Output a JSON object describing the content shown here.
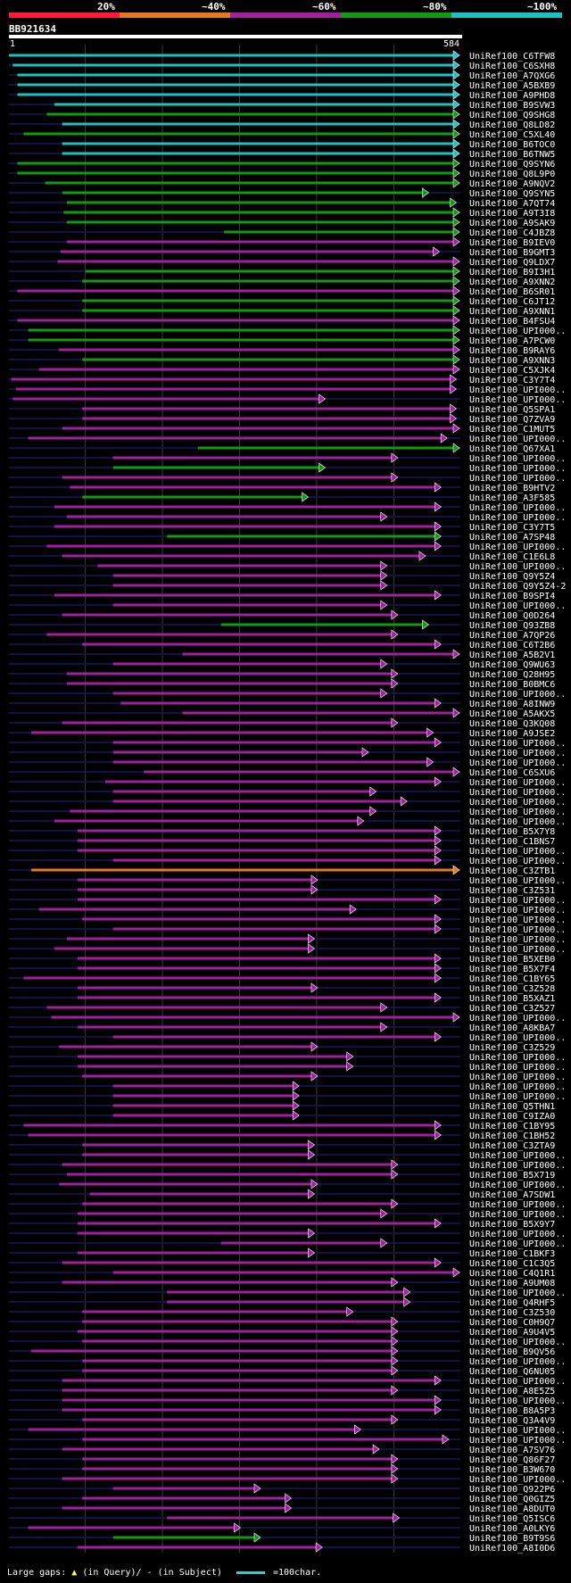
{
  "legend": {
    "labels": [
      "20%",
      "~40%",
      "~60%",
      "~80%",
      "~100%"
    ],
    "colors": [
      "#ff1a3a",
      "#e87722",
      "#a020a0",
      "#139a13",
      "#1fc0c0"
    ]
  },
  "query": {
    "id": "BB921634",
    "start": "1",
    "end": "584"
  },
  "footer": {
    "gaps_label": "Large gaps:",
    "query_gap": "(in Query)/",
    "subject_gap": "- (in Subject)",
    "scale_label": "=100char."
  },
  "chart_data": {
    "type": "alignment",
    "query_id": "BB921634",
    "query_length": 584,
    "hits": [
      {
        "id": "UniRef100_C6TFW8",
        "identity": "~100%",
        "start": 1,
        "end": 584
      },
      {
        "id": "UniRef100_C6SXH8",
        "identity": "~100%",
        "start": 6,
        "end": 584
      },
      {
        "id": "UniRef100_A7QXG6",
        "identity": "~100%",
        "start": 12,
        "end": 584
      },
      {
        "id": "UniRef100_A5BXB9",
        "identity": "~100%",
        "start": 12,
        "end": 584
      },
      {
        "id": "UniRef100_A9PHD8",
        "identity": "~100%",
        "start": 12,
        "end": 584
      },
      {
        "id": "UniRef100_B9SVW3",
        "identity": "~100%",
        "start": 60,
        "end": 584
      },
      {
        "id": "UniRef100_Q9SHG8",
        "identity": "~80%",
        "start": 50,
        "end": 584
      },
      {
        "id": "UniRef100_Q8LD82",
        "identity": "~100%",
        "start": 70,
        "end": 584
      },
      {
        "id": "UniRef100_C5XL40",
        "identity": "~80%",
        "start": 20,
        "end": 584
      },
      {
        "id": "UniRef100_B6TOC0",
        "identity": "~100%",
        "start": 70,
        "end": 584
      },
      {
        "id": "UniRef100_B6TNW5",
        "identity": "~100%",
        "start": 70,
        "end": 584
      },
      {
        "id": "UniRef100_Q9SYN6",
        "identity": "~80%",
        "start": 12,
        "end": 584
      },
      {
        "id": "UniRef100_Q8L9P0",
        "identity": "~80%",
        "start": 12,
        "end": 584
      },
      {
        "id": "UniRef100_A9NQV2",
        "identity": "~80%",
        "start": 48,
        "end": 584
      },
      {
        "id": "UniRef100_Q9SYN5",
        "identity": "~80%",
        "start": 70,
        "end": 544
      },
      {
        "id": "UniRef100_A7QT74",
        "identity": "~80%",
        "start": 76,
        "end": 580
      },
      {
        "id": "UniRef100_A9T3I8",
        "identity": "~80%",
        "start": 72,
        "end": 584
      },
      {
        "id": "UniRef100_A9SAK9",
        "identity": "~80%",
        "start": 76,
        "end": 584
      },
      {
        "id": "UniRef100_C4JBZ8",
        "identity": "~80%",
        "start": 280,
        "end": 584
      },
      {
        "id": "UniRef100_B9IEV0",
        "identity": "~60%",
        "start": 76,
        "end": 584
      },
      {
        "id": "UniRef100_B9GMT3",
        "identity": "~60%",
        "start": 68,
        "end": 558
      },
      {
        "id": "UniRef100_Q9LDX7",
        "identity": "~60%",
        "start": 64,
        "end": 584
      },
      {
        "id": "UniRef100_B9I3H1",
        "identity": "~80%",
        "start": 100,
        "end": 584
      },
      {
        "id": "UniRef100_A9XNN2",
        "identity": "~80%",
        "start": 96,
        "end": 584
      },
      {
        "id": "UniRef100_B6SR01",
        "identity": "~60%",
        "start": 12,
        "end": 584
      },
      {
        "id": "UniRef100_C6JT12",
        "identity": "~80%",
        "start": 96,
        "end": 584
      },
      {
        "id": "UniRef100_A9XNN1",
        "identity": "~80%",
        "start": 96,
        "end": 584
      },
      {
        "id": "UniRef100_B4FSU4",
        "identity": "~60%",
        "start": 12,
        "end": 584
      },
      {
        "id": "UniRef100_UPI000..",
        "identity": "~80%",
        "start": 26,
        "end": 584
      },
      {
        "id": "UniRef100_A7PCW0",
        "identity": "~80%",
        "start": 26,
        "end": 584
      },
      {
        "id": "UniRef100_B9RAY6",
        "identity": "~60%",
        "start": 66,
        "end": 584
      },
      {
        "id": "UniRef100_A9XNN3",
        "identity": "~80%",
        "start": 96,
        "end": 584
      },
      {
        "id": "UniRef100_C5XJK4",
        "identity": "~60%",
        "start": 40,
        "end": 584
      },
      {
        "id": "UniRef100_C3Y7T4",
        "identity": "~60%",
        "start": 4,
        "end": 580
      },
      {
        "id": "UniRef100_UPI000..",
        "identity": "~60%",
        "start": 10,
        "end": 580
      },
      {
        "id": "UniRef100_UPI000..",
        "identity": "~60%",
        "start": 6,
        "end": 410
      },
      {
        "id": "UniRef100_Q5SPA1",
        "identity": "~60%",
        "start": 96,
        "end": 580
      },
      {
        "id": "UniRef100_Q7ZVA9",
        "identity": "~60%",
        "start": 96,
        "end": 580
      },
      {
        "id": "UniRef100_C1MUT5",
        "identity": "~60%",
        "start": 70,
        "end": 584
      },
      {
        "id": "UniRef100_UPI000..",
        "identity": "~60%",
        "start": 26,
        "end": 568
      },
      {
        "id": "UniRef100_Q67XA1",
        "identity": "~80%",
        "start": 246,
        "end": 584
      },
      {
        "id": "UniRef100_UPI000..",
        "identity": "~60%",
        "start": 136,
        "end": 504
      },
      {
        "id": "UniRef100_UPI000..",
        "identity": "~80%",
        "start": 136,
        "end": 410
      },
      {
        "id": "UniRef100_UPI000..",
        "identity": "~60%",
        "start": 70,
        "end": 504
      },
      {
        "id": "UniRef100_B9HTV2",
        "identity": "~60%",
        "start": 80,
        "end": 560
      },
      {
        "id": "UniRef100_A3F585",
        "identity": "~80%",
        "start": 96,
        "end": 388
      },
      {
        "id": "UniRef100_UPI000..",
        "identity": "~60%",
        "start": 60,
        "end": 560
      },
      {
        "id": "UniRef100_UPI000..",
        "identity": "~60%",
        "start": 76,
        "end": 490
      },
      {
        "id": "UniRef100_C3Y7T5",
        "identity": "~60%",
        "start": 60,
        "end": 560
      },
      {
        "id": "UniRef100_A7SP48",
        "identity": "~80%",
        "start": 206,
        "end": 560
      },
      {
        "id": "UniRef100_UPI000..",
        "identity": "~60%",
        "start": 50,
        "end": 560
      },
      {
        "id": "UniRef100_C1E6L8",
        "identity": "~60%",
        "start": 70,
        "end": 540
      },
      {
        "id": "UniRef100_UPI000..",
        "identity": "~60%",
        "start": 116,
        "end": 490
      },
      {
        "id": "UniRef100_Q9Y5Z4",
        "identity": "~60%",
        "start": 136,
        "end": 490
      },
      {
        "id": "UniRef100_Q9Y5Z4-2",
        "identity": "~60%",
        "start": 136,
        "end": 490
      },
      {
        "id": "UniRef100_B9SPI4",
        "identity": "~60%",
        "start": 60,
        "end": 560
      },
      {
        "id": "UniRef100_UPI000..",
        "identity": "~60%",
        "start": 136,
        "end": 490
      },
      {
        "id": "UniRef100_Q0D264",
        "identity": "~60%",
        "start": 70,
        "end": 504
      },
      {
        "id": "UniRef100_Q93ZB8",
        "identity": "~80%",
        "start": 276,
        "end": 544
      },
      {
        "id": "UniRef100_A7QP26",
        "identity": "~60%",
        "start": 50,
        "end": 504
      },
      {
        "id": "UniRef100_C6T2B6",
        "identity": "~60%",
        "start": 96,
        "end": 560
      },
      {
        "id": "UniRef100_A5B2V1",
        "identity": "~60%",
        "start": 226,
        "end": 584
      },
      {
        "id": "UniRef100_Q9WU63",
        "identity": "~60%",
        "start": 136,
        "end": 490
      },
      {
        "id": "UniRef100_Q28H95",
        "identity": "~60%",
        "start": 76,
        "end": 504
      },
      {
        "id": "UniRef100_B0BMC6",
        "identity": "~60%",
        "start": 76,
        "end": 504
      },
      {
        "id": "UniRef100_UPI000..",
        "identity": "~60%",
        "start": 136,
        "end": 490
      },
      {
        "id": "UniRef100_A8INW9",
        "identity": "~60%",
        "start": 146,
        "end": 560
      },
      {
        "id": "UniRef100_A5AKX5",
        "identity": "~60%",
        "start": 226,
        "end": 584
      },
      {
        "id": "UniRef100_Q3KQ08",
        "identity": "~60%",
        "start": 70,
        "end": 504
      },
      {
        "id": "UniRef100_A9JSE2",
        "identity": "~60%",
        "start": 30,
        "end": 550
      },
      {
        "id": "UniRef100_UPI000..",
        "identity": "~60%",
        "start": 136,
        "end": 560
      },
      {
        "id": "UniRef100_UPI000..",
        "identity": "~60%",
        "start": 136,
        "end": 466
      },
      {
        "id": "UniRef100_UPI000..",
        "identity": "~60%",
        "start": 136,
        "end": 550
      },
      {
        "id": "UniRef100_C6SXU6",
        "identity": "~60%",
        "start": 176,
        "end": 584
      },
      {
        "id": "UniRef100_UPI000..",
        "identity": "~60%",
        "start": 126,
        "end": 560
      },
      {
        "id": "UniRef100_UPI000..",
        "identity": "~60%",
        "start": 136,
        "end": 476
      },
      {
        "id": "UniRef100_UPI000..",
        "identity": "~60%",
        "start": 136,
        "end": 516
      },
      {
        "id": "UniRef100_UPI000..",
        "identity": "~60%",
        "start": 80,
        "end": 476
      },
      {
        "id": "UniRef100_UPI000..",
        "identity": "~60%",
        "start": 60,
        "end": 460
      },
      {
        "id": "UniRef100_B5X7Y8",
        "identity": "~60%",
        "start": 90,
        "end": 560
      },
      {
        "id": "UniRef100_C1BNS7",
        "identity": "~60%",
        "start": 90,
        "end": 560
      },
      {
        "id": "UniRef100_UPI000..",
        "identity": "~60%",
        "start": 90,
        "end": 560
      },
      {
        "id": "UniRef100_UPI000..",
        "identity": "~60%",
        "start": 136,
        "end": 560
      },
      {
        "id": "UniRef100_C3ZTB1",
        "identity": "~40%",
        "start": 30,
        "end": 584
      },
      {
        "id": "UniRef100_UPI000..",
        "identity": "~60%",
        "start": 90,
        "end": 400
      },
      {
        "id": "UniRef100_C3Z531",
        "identity": "~60%",
        "start": 90,
        "end": 400
      },
      {
        "id": "UniRef100_UPI000..",
        "identity": "~60%",
        "start": 90,
        "end": 560
      },
      {
        "id": "UniRef100_UPI000..",
        "identity": "~60%",
        "start": 40,
        "end": 450
      },
      {
        "id": "UniRef100_UPI000..",
        "identity": "~60%",
        "start": 96,
        "end": 560
      },
      {
        "id": "UniRef100_UPI000..",
        "identity": "~60%",
        "start": 136,
        "end": 560
      },
      {
        "id": "UniRef100_UPI000..",
        "identity": "~60%",
        "start": 76,
        "end": 396
      },
      {
        "id": "UniRef100_UPI000..",
        "identity": "~60%",
        "start": 60,
        "end": 396
      },
      {
        "id": "UniRef100_B5XEB0",
        "identity": "~60%",
        "start": 90,
        "end": 560
      },
      {
        "id": "UniRef100_B5X7F4",
        "identity": "~60%",
        "start": 90,
        "end": 560
      },
      {
        "id": "UniRef100_C1BY65",
        "identity": "~60%",
        "start": 20,
        "end": 560
      },
      {
        "id": "UniRef100_C3Z528",
        "identity": "~60%",
        "start": 90,
        "end": 400
      },
      {
        "id": "UniRef100_B5XAZ1",
        "identity": "~60%",
        "start": 90,
        "end": 560
      },
      {
        "id": "UniRef100_C3Z527",
        "identity": "~60%",
        "start": 50,
        "end": 490
      },
      {
        "id": "UniRef100_UPI000..",
        "identity": "~60%",
        "start": 56,
        "end": 584
      },
      {
        "id": "UniRef100_A8KBA7",
        "identity": "~60%",
        "start": 90,
        "end": 490
      },
      {
        "id": "UniRef100_UPI000..",
        "identity": "~60%",
        "start": 136,
        "end": 560
      },
      {
        "id": "UniRef100_C3Z529",
        "identity": "~60%",
        "start": 66,
        "end": 400
      },
      {
        "id": "UniRef100_UPI000..",
        "identity": "~60%",
        "start": 90,
        "end": 446
      },
      {
        "id": "UniRef100_UPI000..",
        "identity": "~60%",
        "start": 90,
        "end": 446
      },
      {
        "id": "UniRef100_UPI000..",
        "identity": "~60%",
        "start": 96,
        "end": 400
      },
      {
        "id": "UniRef100_UPI000..",
        "identity": "~60%",
        "start": 136,
        "end": 376
      },
      {
        "id": "UniRef100_UPI000..",
        "identity": "~60%",
        "start": 136,
        "end": 376
      },
      {
        "id": "UniRef100_Q5THN1",
        "identity": "~60%",
        "start": 136,
        "end": 376
      },
      {
        "id": "UniRef100_C9IZA0",
        "identity": "~60%",
        "start": 136,
        "end": 376
      },
      {
        "id": "UniRef100_C1BY95",
        "identity": "~60%",
        "start": 20,
        "end": 560
      },
      {
        "id": "UniRef100_C1BH52",
        "identity": "~60%",
        "start": 26,
        "end": 560
      },
      {
        "id": "UniRef100_C3ZTA9",
        "identity": "~60%",
        "start": 96,
        "end": 396
      },
      {
        "id": "UniRef100_UPI000..",
        "identity": "~60%",
        "start": 96,
        "end": 396
      },
      {
        "id": "UniRef100_UPI000..",
        "identity": "~60%",
        "start": 70,
        "end": 504
      },
      {
        "id": "UniRef100_B5X719",
        "identity": "~60%",
        "start": 76,
        "end": 504
      },
      {
        "id": "UniRef100_UPI000..",
        "identity": "~60%",
        "start": 66,
        "end": 400
      },
      {
        "id": "UniRef100_A7SDW1",
        "identity": "~60%",
        "start": 106,
        "end": 396
      },
      {
        "id": "UniRef100_UPI000..",
        "identity": "~60%",
        "start": 96,
        "end": 504
      },
      {
        "id": "UniRef100_UPI000..",
        "identity": "~60%",
        "start": 90,
        "end": 490
      },
      {
        "id": "UniRef100_B5X9Y7",
        "identity": "~60%",
        "start": 90,
        "end": 560
      },
      {
        "id": "UniRef100_UPI000..",
        "identity": "~60%",
        "start": 90,
        "end": 396
      },
      {
        "id": "UniRef100_UPI000..",
        "identity": "~60%",
        "start": 276,
        "end": 490
      },
      {
        "id": "UniRef100_C1BKF3",
        "identity": "~60%",
        "start": 90,
        "end": 396
      },
      {
        "id": "UniRef100_C1C3Q5",
        "identity": "~60%",
        "start": 70,
        "end": 560
      },
      {
        "id": "UniRef100_C4Q1R1",
        "identity": "~60%",
        "start": 136,
        "end": 584
      },
      {
        "id": "UniRef100_A9UM08",
        "identity": "~60%",
        "start": 70,
        "end": 504
      },
      {
        "id": "UniRef100_UPI000..",
        "identity": "~60%",
        "start": 206,
        "end": 520
      },
      {
        "id": "UniRef100_Q4RHF5",
        "identity": "~60%",
        "start": 206,
        "end": 520
      },
      {
        "id": "UniRef100_C3Z530",
        "identity": "~60%",
        "start": 96,
        "end": 446
      },
      {
        "id": "UniRef100_C0H9Q7",
        "identity": "~60%",
        "start": 96,
        "end": 504
      },
      {
        "id": "UniRef100_A9U4V5",
        "identity": "~60%",
        "start": 90,
        "end": 504
      },
      {
        "id": "UniRef100_UPI000..",
        "identity": "~60%",
        "start": 96,
        "end": 504
      },
      {
        "id": "UniRef100_B9QV56",
        "identity": "~60%",
        "start": 30,
        "end": 504
      },
      {
        "id": "UniRef100_UPI000..",
        "identity": "~60%",
        "start": 96,
        "end": 504
      },
      {
        "id": "UniRef100_Q6NU05",
        "identity": "~60%",
        "start": 96,
        "end": 504
      },
      {
        "id": "UniRef100_UPI000..",
        "identity": "~60%",
        "start": 70,
        "end": 560
      },
      {
        "id": "UniRef100_A8E5Z5",
        "identity": "~60%",
        "start": 70,
        "end": 504
      },
      {
        "id": "UniRef100_UPI000..",
        "identity": "~60%",
        "start": 70,
        "end": 560
      },
      {
        "id": "UniRef100_B8A5P3",
        "identity": "~60%",
        "start": 70,
        "end": 560
      },
      {
        "id": "UniRef100_Q3A4V9",
        "identity": "~60%",
        "start": 96,
        "end": 504
      },
      {
        "id": "UniRef100_UPI000..",
        "identity": "~60%",
        "start": 26,
        "end": 456
      },
      {
        "id": "UniRef100_UPI000..",
        "identity": "~60%",
        "start": 96,
        "end": 570
      },
      {
        "id": "UniRef100_A7SV76",
        "identity": "~60%",
        "start": 70,
        "end": 480
      },
      {
        "id": "UniRef100_Q86F27",
        "identity": "~60%",
        "start": 96,
        "end": 504
      },
      {
        "id": "UniRef100_B3W670",
        "identity": "~60%",
        "start": 96,
        "end": 504
      },
      {
        "id": "UniRef100_UPI000..",
        "identity": "~60%",
        "start": 70,
        "end": 504
      },
      {
        "id": "UniRef100_Q922P6",
        "identity": "~60%",
        "start": 136,
        "end": 326
      },
      {
        "id": "UniRef100_Q0GIZ5",
        "identity": "~60%",
        "start": 96,
        "end": 366
      },
      {
        "id": "UniRef100_A8DUT0",
        "identity": "~60%",
        "start": 70,
        "end": 366
      },
      {
        "id": "UniRef100_Q5ISC6",
        "identity": "~60%",
        "start": 206,
        "end": 506
      },
      {
        "id": "UniRef100_A0LKY6",
        "identity": "~60%",
        "start": 26,
        "end": 300
      },
      {
        "id": "UniRef100_B9T9S6",
        "identity": "~80%",
        "start": 136,
        "end": 326
      },
      {
        "id": "UniRef100_A8I0D6",
        "identity": "~60%",
        "start": 90,
        "end": 406
      }
    ]
  }
}
